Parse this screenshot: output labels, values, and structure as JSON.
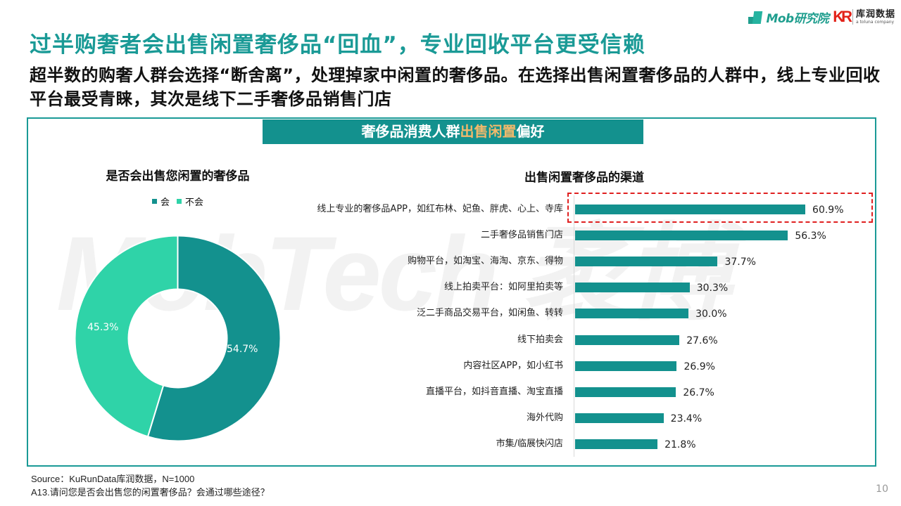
{
  "logos": {
    "mob": "Mob研究院",
    "kurun_cn": "库润数据",
    "kurun_en": "a toluna company",
    "kurun_mark": "KR"
  },
  "title": "过半购奢者会出售闲置奢侈品“回血”，专业回收平台更受信赖",
  "subtitle": "超半数的购奢人群会选择“断舍离”，处理掉家中闲置的奢侈品。在选择出售闲置奢侈品的人群中，线上专业回收平台最受青睐，其次是线下二手奢侈品销售门店",
  "panel": {
    "header_pre": "奢侈品消费人群",
    "header_highlight": "出售闲置",
    "header_post": "偏好",
    "watermark": "MobTech 袤博"
  },
  "colors": {
    "accent": "#13918e",
    "accent_light": "#2fd3a8",
    "title_teal": "#1a9a96",
    "highlight_orange": "#f2b96b",
    "highlight_red": "#e02020"
  },
  "chart_data": [
    {
      "type": "pie",
      "title": "是否会出售您闲置的奢侈品",
      "donut": true,
      "legend_position": "top",
      "categories": [
        "会",
        "不会"
      ],
      "values": [
        54.7,
        45.3
      ],
      "labels": [
        "54.7%",
        "45.3%"
      ],
      "colors": [
        "#13918e",
        "#2fd3a8"
      ]
    },
    {
      "type": "bar",
      "orientation": "horizontal",
      "title": "出售闲置奢侈品的渠道",
      "categories": [
        "线上专业的奢侈品APP，如红布林、妃鱼、胖虎、心上、寺库",
        "二手奢侈品销售门店",
        "购物平台，如淘宝、海淘、京东、得物",
        "线上拍卖平台：如阿里拍卖等",
        "泛二手商品交易平台，如闲鱼、转转",
        "线下拍卖会",
        "内容社区APP，如小红书",
        "直播平台，如抖音直播、淘宝直播",
        "海外代购",
        "市集/临展快闪店"
      ],
      "values": [
        60.9,
        56.3,
        37.7,
        30.3,
        30.0,
        27.6,
        26.9,
        26.7,
        23.4,
        21.8
      ],
      "labels": [
        "60.9%",
        "56.3%",
        "37.7%",
        "30.3%",
        "30.0%",
        "27.6%",
        "26.9%",
        "26.7%",
        "23.4%",
        "21.8%"
      ],
      "unit": "%",
      "grid": false,
      "highlighted_index": 0,
      "color": "#13918e"
    }
  ],
  "footer": {
    "source": "Source：KuRunData库润数据，N=1000",
    "question": "A13.请问您是否会出售您的闲置奢侈品？会通过哪些途径？",
    "page_number": "10"
  }
}
